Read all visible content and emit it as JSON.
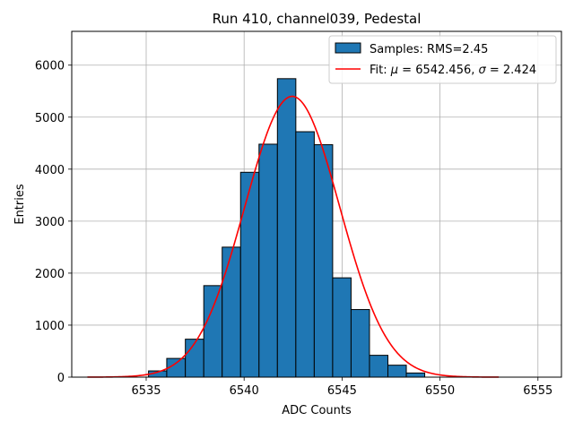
{
  "chart_data": {
    "type": "bar",
    "title": "Run 410, channel039, Pedestal",
    "xlabel": "ADC Counts",
    "ylabel": "Entries",
    "xlim": [
      6531.2,
      6556.2
    ],
    "ylim": [
      0,
      6650
    ],
    "xticks": [
      6535,
      6540,
      6545,
      6550,
      6555
    ],
    "yticks": [
      0,
      1000,
      2000,
      3000,
      4000,
      5000,
      6000
    ],
    "grid": true,
    "legend_position": "top-right",
    "bar_color": "#1f77b4",
    "fit_color": "#ff0000",
    "bins": [
      {
        "left": 6535.12,
        "right": 6536.05,
        "count": 120
      },
      {
        "left": 6536.05,
        "right": 6537.0,
        "count": 360
      },
      {
        "left": 6537.0,
        "right": 6537.94,
        "count": 730
      },
      {
        "left": 6537.94,
        "right": 6538.88,
        "count": 1760
      },
      {
        "left": 6538.88,
        "right": 6539.82,
        "count": 2500
      },
      {
        "left": 6539.82,
        "right": 6540.76,
        "count": 3940
      },
      {
        "left": 6540.76,
        "right": 6541.7,
        "count": 4480
      },
      {
        "left": 6541.7,
        "right": 6542.64,
        "count": 5740
      },
      {
        "left": 6542.64,
        "right": 6543.58,
        "count": 4720
      },
      {
        "left": 6543.58,
        "right": 6544.52,
        "count": 4470
      },
      {
        "left": 6544.52,
        "right": 6545.46,
        "count": 1910
      },
      {
        "left": 6545.46,
        "right": 6546.4,
        "count": 1300
      },
      {
        "left": 6546.4,
        "right": 6547.34,
        "count": 420
      },
      {
        "left": 6547.34,
        "right": 6548.28,
        "count": 230
      },
      {
        "left": 6548.28,
        "right": 6549.22,
        "count": 80
      }
    ],
    "fit": {
      "mu": 6542.456,
      "sigma": 2.424,
      "amplitude": 5400,
      "x_range": [
        6532.0,
        6553.0
      ]
    },
    "legend": {
      "samples_label": "Samples: RMS=2.45",
      "fit_prefix": "Fit: ",
      "mu_symbol": "μ",
      "mu_value": " = 6542.456, ",
      "sigma_symbol": "σ",
      "sigma_value": " = 2.424"
    }
  }
}
